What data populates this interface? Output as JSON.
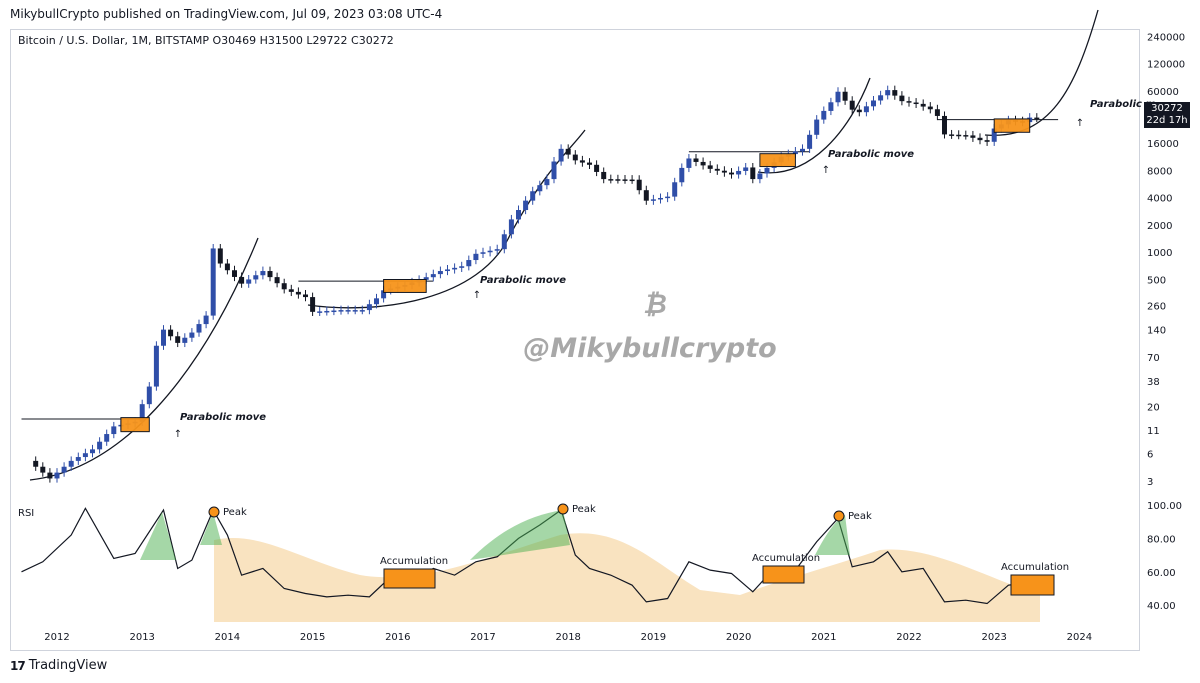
{
  "header": {
    "published": "MikybullCrypto published on TradingView.com, Jul 09, 2023 03:08 UTC-4",
    "symbol_line": "Bitcoin / U.S. Dollar, 1M, BITSTAMP  O30469  H31500  L29722  C30272"
  },
  "footer": {
    "brand_mark": "17",
    "brand": "TradingView"
  },
  "watermark": {
    "logo": "₿",
    "handle": "@Mikybullcrypto"
  },
  "price_label": {
    "price": "30272",
    "countdown": "22d 17h"
  },
  "colors": {
    "up": "#2f4ea8",
    "down": "#131722",
    "box": "#f7931a",
    "area": "#f9e3c0",
    "rsi_line": "#131722",
    "peak_fill": "#4caf50"
  },
  "chart_data": [
    {
      "type": "line",
      "title": "Bitcoin / U.S. Dollar, 1M, BITSTAMP",
      "scale": "log",
      "x_axis_ticks": [
        "2012",
        "2013",
        "2014",
        "2015",
        "2016",
        "2017",
        "2018",
        "2019",
        "2020",
        "2021",
        "2022",
        "2023",
        "2024"
      ],
      "y_axis_ticks": [
        "3",
        "6",
        "11",
        "20",
        "38",
        "70",
        "140",
        "260",
        "500",
        "1000",
        "2000",
        "4000",
        "8000",
        "16000",
        "30000",
        "60000",
        "120000",
        "240000"
      ],
      "series": [
        {
          "values": [
            {
              "x": "2011-09",
              "y": 5
            },
            {
              "x": "2011-12",
              "y": 3.2
            },
            {
              "x": "2012-03",
              "y": 5
            },
            {
              "x": "2012-06",
              "y": 6.7
            },
            {
              "x": "2012-09",
              "y": 12
            },
            {
              "x": "2012-12",
              "y": 13.5
            },
            {
              "x": "2013-02",
              "y": 33
            },
            {
              "x": "2013-03",
              "y": 93
            },
            {
              "x": "2013-04",
              "y": 140
            },
            {
              "x": "2013-06",
              "y": 100
            },
            {
              "x": "2013-08",
              "y": 130
            },
            {
              "x": "2013-10",
              "y": 200
            },
            {
              "x": "2013-11",
              "y": 1100
            },
            {
              "x": "2013-12",
              "y": 750
            },
            {
              "x": "2014-03",
              "y": 450
            },
            {
              "x": "2014-06",
              "y": 620
            },
            {
              "x": "2014-09",
              "y": 390
            },
            {
              "x": "2014-12",
              "y": 320
            },
            {
              "x": "2015-01",
              "y": 220
            },
            {
              "x": "2015-05",
              "y": 230
            },
            {
              "x": "2015-08",
              "y": 230
            },
            {
              "x": "2015-10",
              "y": 310
            },
            {
              "x": "2015-11",
              "y": 380
            },
            {
              "x": "2016-02",
              "y": 435
            },
            {
              "x": "2016-05",
              "y": 530
            },
            {
              "x": "2016-07",
              "y": 620
            },
            {
              "x": "2016-10",
              "y": 700
            },
            {
              "x": "2016-12",
              "y": 960
            },
            {
              "x": "2017-03",
              "y": 1080
            },
            {
              "x": "2017-05",
              "y": 2300
            },
            {
              "x": "2017-08",
              "y": 4700
            },
            {
              "x": "2017-10",
              "y": 6400
            },
            {
              "x": "2017-11",
              "y": 10000
            },
            {
              "x": "2017-12",
              "y": 13800
            },
            {
              "x": "2018-02",
              "y": 10300
            },
            {
              "x": "2018-04",
              "y": 9200
            },
            {
              "x": "2018-06",
              "y": 6400
            },
            {
              "x": "2018-10",
              "y": 6300
            },
            {
              "x": "2018-12",
              "y": 3700
            },
            {
              "x": "2019-03",
              "y": 4100
            },
            {
              "x": "2019-05",
              "y": 8500
            },
            {
              "x": "2019-06",
              "y": 10800
            },
            {
              "x": "2019-09",
              "y": 8300
            },
            {
              "x": "2019-12",
              "y": 7200
            },
            {
              "x": "2020-02",
              "y": 8600
            },
            {
              "x": "2020-03",
              "y": 6400
            },
            {
              "x": "2020-07",
              "y": 11300
            },
            {
              "x": "2020-10",
              "y": 13800
            },
            {
              "x": "2020-11",
              "y": 19700
            },
            {
              "x": "2020-12",
              "y": 29000
            },
            {
              "x": "2021-02",
              "y": 45000
            },
            {
              "x": "2021-03",
              "y": 58800
            },
            {
              "x": "2021-05",
              "y": 37300
            },
            {
              "x": "2021-06",
              "y": 35000
            },
            {
              "x": "2021-08",
              "y": 47100
            },
            {
              "x": "2021-10",
              "y": 61300
            },
            {
              "x": "2021-12",
              "y": 46300
            },
            {
              "x": "2022-02",
              "y": 43200
            },
            {
              "x": "2022-04",
              "y": 37700
            },
            {
              "x": "2022-05",
              "y": 31800
            },
            {
              "x": "2022-06",
              "y": 19900
            },
            {
              "x": "2022-09",
              "y": 19400
            },
            {
              "x": "2022-11",
              "y": 17200
            },
            {
              "x": "2022-12",
              "y": 16500
            },
            {
              "x": "2023-01",
              "y": 23100
            },
            {
              "x": "2023-03",
              "y": 28500
            },
            {
              "x": "2023-05",
              "y": 27200
            },
            {
              "x": "2023-06",
              "y": 30500
            },
            {
              "x": "2023-07",
              "y": 30272
            }
          ]
        }
      ],
      "annotations": [
        {
          "text": "Parabolic move"
        },
        {
          "text": "Parabolic move"
        },
        {
          "text": "Parabolic move"
        },
        {
          "text": "Parabolic m"
        }
      ]
    },
    {
      "type": "line",
      "title": "RSI",
      "y_axis_ticks": [
        "100.00",
        "80.00",
        "60.00",
        "40.00"
      ],
      "ylim": [
        35,
        100
      ],
      "series": [
        {
          "values": [
            {
              "x": "2011-08",
              "y": 60
            },
            {
              "x": "2011-11",
              "y": 66
            },
            {
              "x": "2012-03",
              "y": 82
            },
            {
              "x": "2012-05",
              "y": 98
            },
            {
              "x": "2012-09",
              "y": 68
            },
            {
              "x": "2012-12",
              "y": 71
            },
            {
              "x": "2013-04",
              "y": 97
            },
            {
              "x": "2013-06",
              "y": 62
            },
            {
              "x": "2013-08",
              "y": 67
            },
            {
              "x": "2013-11",
              "y": 97
            },
            {
              "x": "2014-01",
              "y": 82
            },
            {
              "x": "2014-03",
              "y": 58
            },
            {
              "x": "2014-06",
              "y": 62
            },
            {
              "x": "2014-09",
              "y": 50
            },
            {
              "x": "2014-12",
              "y": 47
            },
            {
              "x": "2015-03",
              "y": 45
            },
            {
              "x": "2015-06",
              "y": 46
            },
            {
              "x": "2015-09",
              "y": 45
            },
            {
              "x": "2015-12",
              "y": 57
            },
            {
              "x": "2016-03",
              "y": 53
            },
            {
              "x": "2016-06",
              "y": 62
            },
            {
              "x": "2016-09",
              "y": 58
            },
            {
              "x": "2016-12",
              "y": 66
            },
            {
              "x": "2017-03",
              "y": 69
            },
            {
              "x": "2017-06",
              "y": 80
            },
            {
              "x": "2017-09",
              "y": 88
            },
            {
              "x": "2017-12",
              "y": 97
            },
            {
              "x": "2018-02",
              "y": 70
            },
            {
              "x": "2018-04",
              "y": 62
            },
            {
              "x": "2018-07",
              "y": 58
            },
            {
              "x": "2018-10",
              "y": 52
            },
            {
              "x": "2018-12",
              "y": 42
            },
            {
              "x": "2019-03",
              "y": 44
            },
            {
              "x": "2019-06",
              "y": 66
            },
            {
              "x": "2019-09",
              "y": 61
            },
            {
              "x": "2019-12",
              "y": 59
            },
            {
              "x": "2020-03",
              "y": 48
            },
            {
              "x": "2020-06",
              "y": 62
            },
            {
              "x": "2020-09",
              "y": 61
            },
            {
              "x": "2020-12",
              "y": 78
            },
            {
              "x": "2021-03",
              "y": 92
            },
            {
              "x": "2021-05",
              "y": 63
            },
            {
              "x": "2021-08",
              "y": 66
            },
            {
              "x": "2021-10",
              "y": 72
            },
            {
              "x": "2021-12",
              "y": 60
            },
            {
              "x": "2022-03",
              "y": 62
            },
            {
              "x": "2022-06",
              "y": 42
            },
            {
              "x": "2022-09",
              "y": 43
            },
            {
              "x": "2022-12",
              "y": 41
            },
            {
              "x": "2023-03",
              "y": 52
            },
            {
              "x": "2023-05",
              "y": 53
            },
            {
              "x": "2023-07",
              "y": 55
            }
          ]
        }
      ],
      "annotations": [
        {
          "text": "Peak"
        },
        {
          "text": "Peak"
        },
        {
          "text": "Peak"
        },
        {
          "text": "Accumulation"
        },
        {
          "text": "Accumulation"
        },
        {
          "text": "Accumulation"
        }
      ]
    }
  ],
  "labels": {
    "rsi": "RSI",
    "parabolic_1": "Parabolic move",
    "parabolic_2": "Parabolic move",
    "parabolic_3": "Parabolic move",
    "parabolic_4": "Parabolic m",
    "peak": "Peak",
    "accumulation": "Accumulation"
  }
}
